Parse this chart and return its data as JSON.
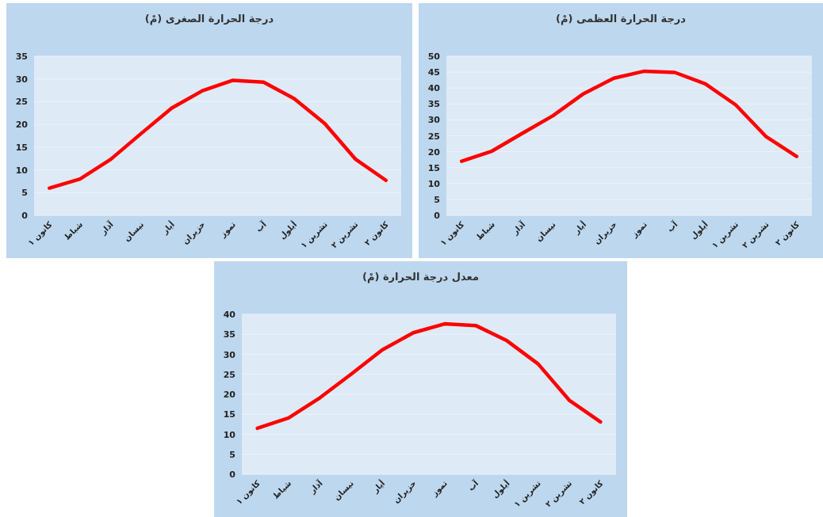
{
  "chart_data": [
    {
      "type": "line",
      "title": "درجة الحرارة الصغرى (مْ)",
      "categories": [
        "كانون ١",
        "شباط",
        "آذار",
        "نيسان",
        "أيار",
        "حزيران",
        "تموز",
        "آب",
        "أيلول",
        "تشرين ١",
        "تشرين ٢",
        "كانون ٢"
      ],
      "color": "#ff0000",
      "values": [
        6,
        8,
        12.3,
        18,
        23.6,
        27.4,
        29.7,
        29.3,
        25.7,
        20.2,
        12.4,
        7.7
      ],
      "ylim": [
        0,
        35
      ],
      "yticks": [
        0,
        5,
        10,
        15,
        20,
        25,
        30,
        35
      ],
      "grid": "y"
    },
    {
      "type": "line",
      "title": "درجة الحرارة العظمى (مْ)",
      "categories": [
        "كانون ١",
        "شباط",
        "آذار",
        "نيسان",
        "أيار",
        "حزيران",
        "تموز",
        "آب",
        "أيلول",
        "تشرين ١",
        "تشرين ٢",
        "كانون ٢"
      ],
      "color": "#ff0000",
      "values": [
        17,
        20.2,
        25.8,
        31.3,
        38.2,
        43.1,
        45.3,
        44.9,
        41.3,
        34.7,
        24.7,
        18.5
      ],
      "ylim": [
        0,
        50
      ],
      "yticks": [
        0,
        5,
        10,
        15,
        20,
        25,
        30,
        35,
        40,
        45,
        50
      ],
      "grid": "y"
    },
    {
      "type": "line",
      "title": "معدل درجة الحرارة (مْ)",
      "categories": [
        "كانون ١",
        "شباط",
        "آذار",
        "نيسان",
        "أيار",
        "حزيران",
        "تموز",
        "آب",
        "أيلول",
        "تشرين ١",
        "تشرين ٢",
        "كانون ٢"
      ],
      "color": "#ff0000",
      "values": [
        11.5,
        14.1,
        19.1,
        25.0,
        31.1,
        35.4,
        37.6,
        37.2,
        33.4,
        27.6,
        18.5,
        13.1
      ],
      "ylim": [
        0,
        40
      ],
      "yticks": [
        0,
        5,
        10,
        15,
        20,
        25,
        30,
        35,
        40
      ],
      "grid": "y"
    }
  ]
}
